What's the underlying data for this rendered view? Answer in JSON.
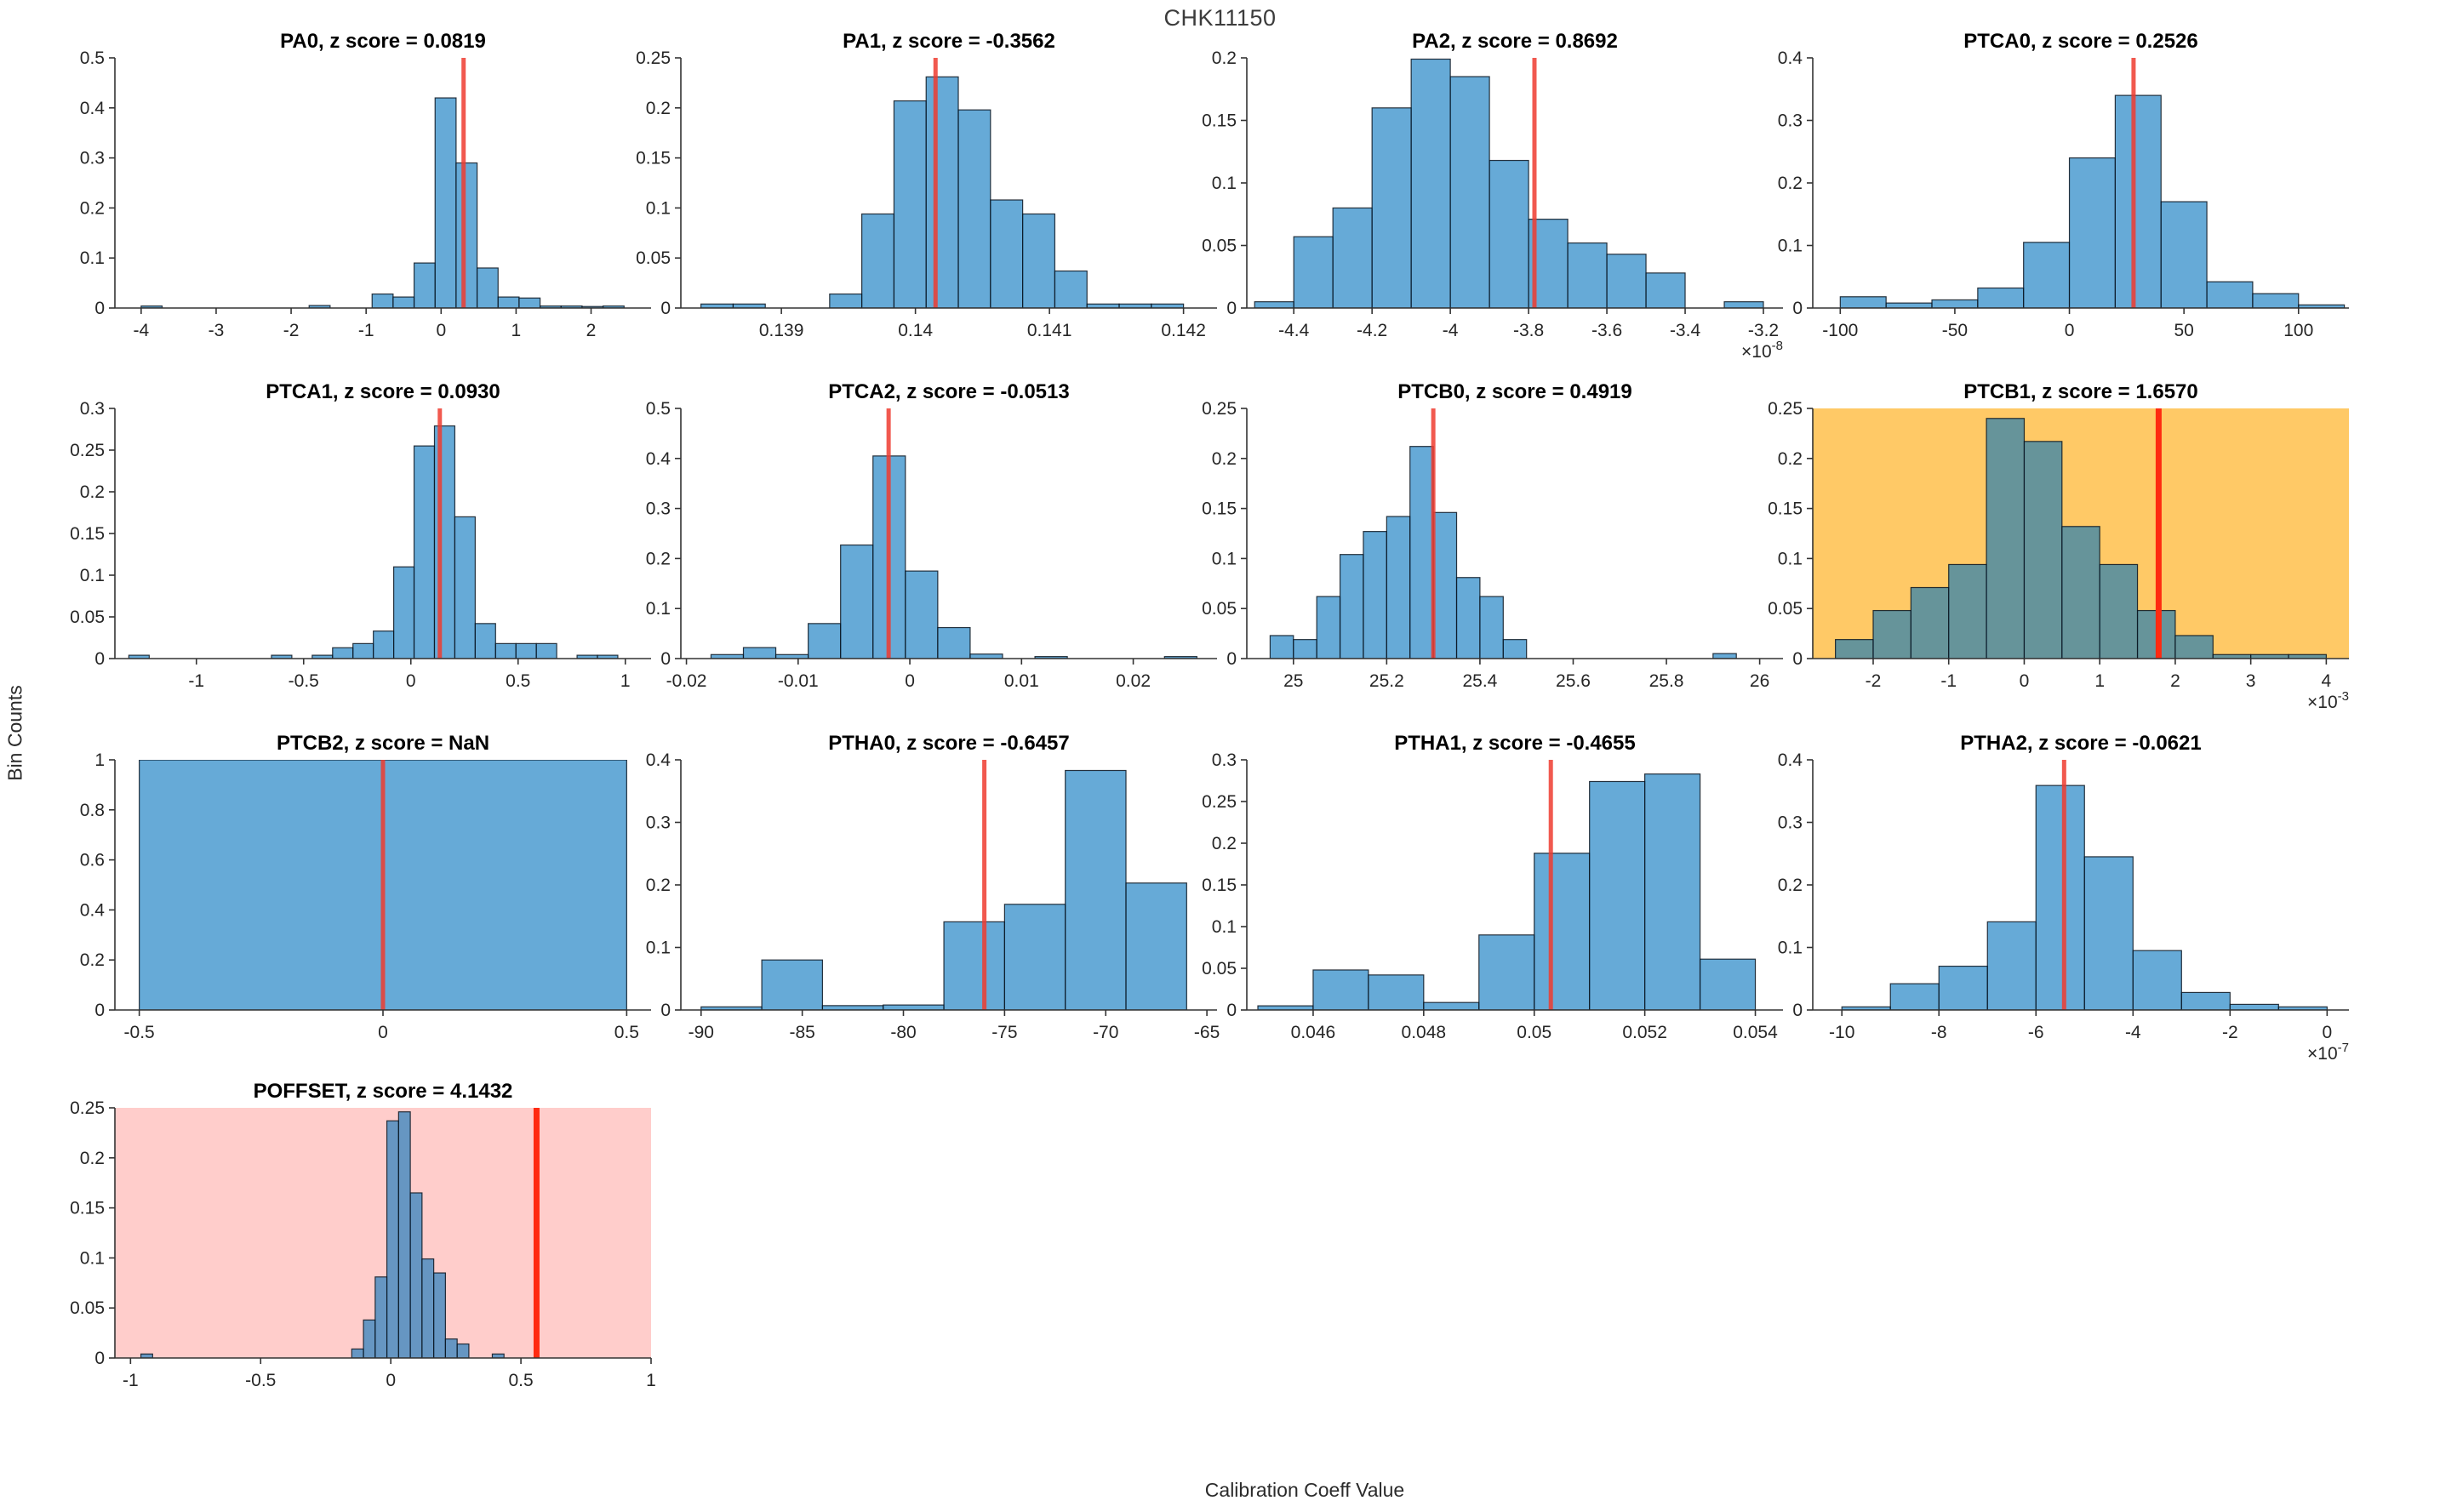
{
  "figure": {
    "title": "CHK11150",
    "xlabel": "Calibration Coeff Value",
    "ylabel": "Bin Counts"
  },
  "colors": {
    "bar_fill": "rgba(0,114,189,0.6)",
    "bar_edge": "rgba(10,20,30,0.85)",
    "marker": "rgba(238,60,48,0.85)",
    "marker_strong": "#ff2a10",
    "bg_orange": "#ffc966",
    "bg_pink": "#ffcdcb",
    "axis": "#333333",
    "text": "#262626",
    "title_text": "#000000"
  },
  "chart_data": [
    {
      "type": "bar",
      "name": "PA0",
      "title": "PA0, z score = 0.0819",
      "background": null,
      "xlim": [
        -4.35,
        2.8
      ],
      "ylim": [
        0,
        0.5
      ],
      "xtick_vals": [
        -4,
        -3,
        -2,
        -1,
        0,
        1,
        2
      ],
      "xtick_labels": [
        "-4",
        "-3",
        "-2",
        "-1",
        "0",
        "1",
        "2"
      ],
      "ytick_vals": [
        0,
        0.1,
        0.2,
        0.3,
        0.4,
        0.5
      ],
      "ytick_labels": [
        "0",
        "0.1",
        "0.2",
        "0.3",
        "0.4",
        "0.5"
      ],
      "bin_start": -4.0,
      "bin_width": 0.28,
      "heights": [
        0.004,
        0,
        0,
        0,
        0,
        0,
        0,
        0,
        0.005,
        0,
        0,
        0.028,
        0.022,
        0.09,
        0.42,
        0.29,
        0.08,
        0.022,
        0.02,
        0.004,
        0.004,
        0.003,
        0.004
      ],
      "marker": 0.3,
      "marker_strong": false,
      "exponent": null
    },
    {
      "type": "bar",
      "name": "PA1",
      "title": "PA1, z score = -0.3562",
      "background": null,
      "xlim": [
        0.13825,
        0.14225
      ],
      "ylim": [
        0,
        0.25
      ],
      "xtick_vals": [
        0.139,
        0.14,
        0.141,
        0.142
      ],
      "xtick_labels": [
        "0.139",
        "0.14",
        "0.141",
        "0.142"
      ],
      "ytick_vals": [
        0,
        0.05,
        0.1,
        0.15,
        0.2,
        0.25
      ],
      "ytick_labels": [
        "0",
        "0.05",
        "0.1",
        "0.15",
        "0.2",
        "0.25"
      ],
      "bin_start": 0.1384,
      "bin_width": 0.00024,
      "heights": [
        0.004,
        0.004,
        0,
        0,
        0.014,
        0.094,
        0.207,
        0.231,
        0.198,
        0.108,
        0.094,
        0.037,
        0.004,
        0.004,
        0.004
      ],
      "marker": 0.14015,
      "marker_strong": false,
      "exponent": null
    },
    {
      "type": "bar",
      "name": "PA2",
      "title": "PA2, z score = 0.8692",
      "background": null,
      "xlim": [
        -4.52,
        -3.15
      ],
      "ylim": [
        0,
        0.2
      ],
      "xtick_vals": [
        -4.4,
        -4.2,
        -4,
        -3.8,
        -3.6,
        -3.4,
        -3.2
      ],
      "xtick_labels": [
        "-4.4",
        "-4.2",
        "-4",
        "-3.8",
        "-3.6",
        "-3.4",
        "-3.2"
      ],
      "ytick_vals": [
        0,
        0.05,
        0.1,
        0.15,
        0.2
      ],
      "ytick_labels": [
        "0",
        "0.05",
        "0.1",
        "0.15",
        "0.2"
      ],
      "bin_start": -4.5,
      "bin_width": 0.1,
      "heights": [
        0.005,
        0.057,
        0.08,
        0.16,
        0.199,
        0.185,
        0.118,
        0.071,
        0.052,
        0.043,
        0.028,
        0,
        0.005
      ],
      "marker": -3.785,
      "marker_strong": false,
      "exponent": "×10^-8"
    },
    {
      "type": "bar",
      "name": "PTCA0",
      "title": "PTCA0, z score = 0.2526",
      "background": null,
      "xlim": [
        -112,
        122
      ],
      "ylim": [
        0,
        0.4
      ],
      "xtick_vals": [
        -100,
        -50,
        0,
        50,
        100
      ],
      "xtick_labels": [
        "-100",
        "-50",
        "0",
        "50",
        "100"
      ],
      "ytick_vals": [
        0,
        0.1,
        0.2,
        0.3,
        0.4
      ],
      "ytick_labels": [
        "0",
        "0.1",
        "0.2",
        "0.3",
        "0.4"
      ],
      "bin_start": -100,
      "bin_width": 20,
      "heights": [
        0.018,
        0.008,
        0.013,
        0.032,
        0.105,
        0.24,
        0.34,
        0.17,
        0.042,
        0.023,
        0.005
      ],
      "marker": 28,
      "marker_strong": false,
      "exponent": null
    },
    {
      "type": "bar",
      "name": "PTCA1",
      "title": "PTCA1, z score = 0.0930",
      "background": null,
      "xlim": [
        -1.38,
        1.12
      ],
      "ylim": [
        0,
        0.3
      ],
      "xtick_vals": [
        -1,
        -0.5,
        0,
        0.5,
        1
      ],
      "xtick_labels": [
        "-1",
        "-0.5",
        "0",
        "0.5",
        "1"
      ],
      "ytick_vals": [
        0,
        0.05,
        0.1,
        0.15,
        0.2,
        0.25,
        0.3
      ],
      "ytick_labels": [
        "0",
        "0.05",
        "0.1",
        "0.15",
        "0.2",
        "0.25",
        "0.3"
      ],
      "bin_start": -1.315,
      "bin_width": 0.095,
      "heights": [
        0.004,
        0,
        0,
        0,
        0,
        0,
        0,
        0.004,
        0,
        0.004,
        0.013,
        0.018,
        0.033,
        0.11,
        0.255,
        0.279,
        0.17,
        0.042,
        0.018,
        0.018,
        0.018,
        0,
        0.004,
        0.004
      ],
      "marker": 0.135,
      "marker_strong": false,
      "exponent": null
    },
    {
      "type": "bar",
      "name": "PTCA2",
      "title": "PTCA2, z score = -0.0513",
      "background": null,
      "xlim": [
        -0.0205,
        0.0275
      ],
      "ylim": [
        0,
        0.5
      ],
      "xtick_vals": [
        -0.02,
        -0.01,
        0,
        0.01,
        0.02
      ],
      "xtick_labels": [
        "-0.02",
        "-0.01",
        "0",
        "0.01",
        "0.02"
      ],
      "ytick_vals": [
        0,
        0.1,
        0.2,
        0.3,
        0.4,
        0.5
      ],
      "ytick_labels": [
        "0",
        "0.1",
        "0.2",
        "0.3",
        "0.4",
        "0.5"
      ],
      "bin_start": -0.0178,
      "bin_width": 0.0029,
      "heights": [
        0.008,
        0.022,
        0.008,
        0.07,
        0.227,
        0.405,
        0.175,
        0.062,
        0.009,
        0,
        0.004,
        0,
        0,
        0,
        0.004
      ],
      "marker": -0.0019,
      "marker_strong": false,
      "exponent": null
    },
    {
      "type": "bar",
      "name": "PTCB0",
      "title": "PTCB0, z score = 0.4919",
      "background": null,
      "xlim": [
        24.9,
        26.05
      ],
      "ylim": [
        0,
        0.25
      ],
      "xtick_vals": [
        25,
        25.2,
        25.4,
        25.6,
        25.8,
        26
      ],
      "xtick_labels": [
        "25",
        "25.2",
        "25.4",
        "25.6",
        "25.8",
        "26"
      ],
      "ytick_vals": [
        0,
        0.05,
        0.1,
        0.15,
        0.2,
        0.25
      ],
      "ytick_labels": [
        "0",
        "0.05",
        "0.1",
        "0.15",
        "0.2",
        "0.25"
      ],
      "bin_start": 24.95,
      "bin_width": 0.05,
      "heights": [
        0.023,
        0.019,
        0.062,
        0.104,
        0.127,
        0.142,
        0.212,
        0.146,
        0.081,
        0.062,
        0.019,
        0,
        0,
        0,
        0,
        0,
        0,
        0,
        0,
        0.005
      ],
      "marker": 25.3,
      "marker_strong": false,
      "exponent": null
    },
    {
      "type": "bar",
      "name": "PTCB1",
      "title": "PTCB1, z score = 1.6570",
      "background": "orange",
      "xlim": [
        -2.8,
        4.3
      ],
      "ylim": [
        0,
        0.25
      ],
      "xtick_vals": [
        -2,
        -1,
        0,
        1,
        2,
        3,
        4
      ],
      "xtick_labels": [
        "-2",
        "-1",
        "0",
        "1",
        "2",
        "3",
        "4"
      ],
      "ytick_vals": [
        0,
        0.05,
        0.1,
        0.15,
        0.2,
        0.25
      ],
      "ytick_labels": [
        "0",
        "0.05",
        "0.1",
        "0.15",
        "0.2",
        "0.25"
      ],
      "bin_start": -2.5,
      "bin_width": 0.5,
      "heights": [
        0.019,
        0.048,
        0.071,
        0.094,
        0.24,
        0.217,
        0.132,
        0.094,
        0.048,
        0.023,
        0.004,
        0.004,
        0.004
      ],
      "marker": 1.78,
      "marker_strong": true,
      "exponent": "×10^-3"
    },
    {
      "type": "bar",
      "name": "PTCB2",
      "title": "PTCB2, z score = NaN",
      "background": null,
      "xlim": [
        -0.55,
        0.55
      ],
      "ylim": [
        0,
        1
      ],
      "xtick_vals": [
        -0.5,
        0,
        0.5
      ],
      "xtick_labels": [
        "-0.5",
        "0",
        "0.5"
      ],
      "ytick_vals": [
        0,
        0.2,
        0.4,
        0.6,
        0.8,
        1
      ],
      "ytick_labels": [
        "0",
        "0.2",
        "0.4",
        "0.6",
        "0.8",
        "1"
      ],
      "bin_start": -0.5,
      "bin_width": 1.0,
      "heights": [
        1
      ],
      "marker": 0,
      "marker_strong": false,
      "exponent": null
    },
    {
      "type": "bar",
      "name": "PTHA0",
      "title": "PTHA0, z score = -0.6457",
      "background": null,
      "xlim": [
        -91,
        -64.5
      ],
      "ylim": [
        0,
        0.4
      ],
      "xtick_vals": [
        -90,
        -85,
        -80,
        -75,
        -70,
        -65
      ],
      "xtick_labels": [
        "-90",
        "-85",
        "-80",
        "-75",
        "-70",
        "-65"
      ],
      "ytick_vals": [
        0,
        0.1,
        0.2,
        0.3,
        0.4
      ],
      "ytick_labels": [
        "0",
        "0.1",
        "0.2",
        "0.3",
        "0.4"
      ],
      "bin_start": -90,
      "bin_width": 3,
      "heights": [
        0.005,
        0.08,
        0.007,
        0.008,
        0.141,
        0.169,
        0.383,
        0.203
      ],
      "marker": -76,
      "marker_strong": false,
      "exponent": null
    },
    {
      "type": "bar",
      "name": "PTHA1",
      "title": "PTHA1, z score = -0.4655",
      "background": null,
      "xlim": [
        0.0448,
        0.0545
      ],
      "ylim": [
        0,
        0.3
      ],
      "xtick_vals": [
        0.046,
        0.048,
        0.05,
        0.052,
        0.054
      ],
      "xtick_labels": [
        "0.046",
        "0.048",
        "0.05",
        "0.052",
        "0.054"
      ],
      "ytick_vals": [
        0,
        0.05,
        0.1,
        0.15,
        0.2,
        0.25,
        0.3
      ],
      "ytick_labels": [
        "0",
        "0.05",
        "0.1",
        "0.15",
        "0.2",
        "0.25",
        "0.3"
      ],
      "bin_start": 0.045,
      "bin_width": 0.001,
      "heights": [
        0.005,
        0.048,
        0.042,
        0.009,
        0.09,
        0.188,
        0.274,
        0.283,
        0.061
      ],
      "marker": 0.0503,
      "marker_strong": false,
      "exponent": null
    },
    {
      "type": "bar",
      "name": "PTHA2",
      "title": "PTHA2, z score = -0.0621",
      "background": null,
      "xlim": [
        -10.6,
        0.45
      ],
      "ylim": [
        0,
        0.4
      ],
      "xtick_vals": [
        -10,
        -8,
        -6,
        -4,
        -2,
        0
      ],
      "xtick_labels": [
        "-10",
        "-8",
        "-6",
        "-4",
        "-2",
        "0"
      ],
      "ytick_vals": [
        0,
        0.1,
        0.2,
        0.3,
        0.4
      ],
      "ytick_labels": [
        "0",
        "0.1",
        "0.2",
        "0.3",
        "0.4"
      ],
      "bin_start": -10,
      "bin_width": 1,
      "heights": [
        0.005,
        0.042,
        0.07,
        0.141,
        0.359,
        0.245,
        0.095,
        0.028,
        0.009,
        0.005
      ],
      "marker": -5.42,
      "marker_strong": false,
      "exponent": "×10^-7"
    },
    {
      "type": "bar",
      "name": "POFFSET",
      "title": "POFFSET, z score = 4.1432",
      "background": "pink",
      "xlim": [
        -1.06,
        1.0
      ],
      "ylim": [
        0,
        0.25
      ],
      "xtick_vals": [
        -1,
        -0.5,
        0,
        0.5,
        1
      ],
      "xtick_labels": [
        "-1",
        "-0.5",
        "0",
        "0.5",
        "1"
      ],
      "ytick_vals": [
        0,
        0.05,
        0.1,
        0.15,
        0.2,
        0.25
      ],
      "ytick_labels": [
        "0",
        "0.05",
        "0.1",
        "0.15",
        "0.2",
        "0.25"
      ],
      "bin_start": -0.96,
      "bin_width": 0.045,
      "heights": [
        0.004,
        0,
        0,
        0,
        0,
        0,
        0,
        0,
        0,
        0,
        0,
        0,
        0,
        0,
        0,
        0,
        0,
        0,
        0.009,
        0.038,
        0.081,
        0.237,
        0.246,
        0.165,
        0.099,
        0.085,
        0.019,
        0.014,
        0,
        0,
        0.004
      ],
      "marker": 0.56,
      "marker_strong": true,
      "exponent": null
    }
  ]
}
